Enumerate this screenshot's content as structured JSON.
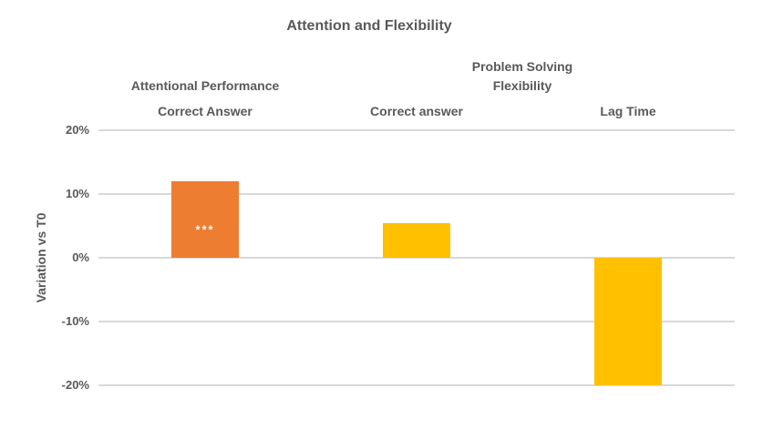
{
  "chart_data": {
    "type": "bar",
    "title": "Attention and Flexibility",
    "ylabel": "Variation vs T0",
    "xlabel": "",
    "unit": "%",
    "ylim": [
      -20,
      20
    ],
    "grid": true,
    "legend": "none",
    "colors": {
      "orange_bar": "#ED7D31",
      "yellow_bar": "#FFC000",
      "gridline": "#D9D9D9",
      "text": "#595959",
      "annotation_text": "#FFFFFF",
      "background": "#FFFFFF"
    },
    "y_ticks": [
      {
        "value": 20,
        "label": "20%"
      },
      {
        "value": 10,
        "label": "10%"
      },
      {
        "value": 0,
        "label": "0%"
      },
      {
        "value": -10,
        "label": "-10%"
      },
      {
        "value": -20,
        "label": "-20%"
      }
    ],
    "groups": [
      {
        "lines": [
          "Attentional Performance"
        ],
        "column_indexes": [
          0
        ]
      },
      {
        "lines": [
          "Problem Solving",
          "Flexibility"
        ],
        "column_indexes": [
          1,
          2
        ]
      }
    ],
    "categories": [
      "Correct Answer",
      "Correct answer",
      "Lag Time"
    ],
    "values": [
      12,
      5.4,
      -20
    ],
    "bar_colors": [
      "#ED7D31",
      "#FFC000",
      "#FFC000"
    ],
    "annotations": [
      {
        "category_index": 0,
        "text": "***",
        "color": "#FFFFFF"
      }
    ]
  }
}
